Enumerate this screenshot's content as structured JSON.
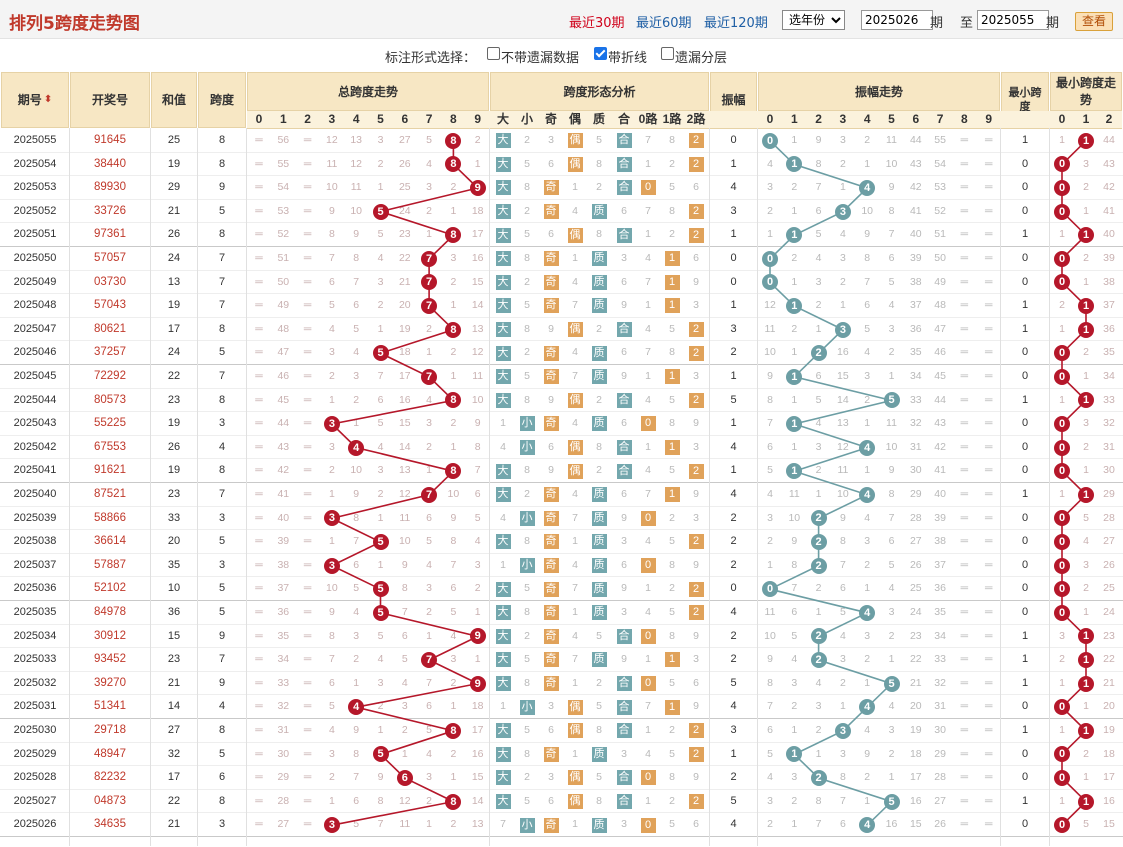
{
  "title": "排列5跨度走势图",
  "periods": [
    "最近30期",
    "最近60期",
    "最近120期"
  ],
  "year_select": "选年份",
  "from_issue": "2025026",
  "to_issue": "2025055",
  "label_qi": "期",
  "label_zhi": "至",
  "query_label": "查看",
  "options": {
    "label": "标注形式选择：",
    "items": [
      {
        "label": "不带遗漏数据",
        "checked": false
      },
      {
        "label": "带折线",
        "checked": true
      },
      {
        "label": "遗漏分层",
        "checked": false
      }
    ]
  },
  "headers": {
    "issue": "期号",
    "draw": "开奖号",
    "sum": "和值",
    "span": "跨度",
    "span_trend": "总跨度走势",
    "pattern": "跨度形态分析",
    "amp": "振幅",
    "amp_trend": "振幅走势",
    "min_span": "最小跨度",
    "min_trend": "最小跨度走势",
    "pattern_cols": [
      "大",
      "小",
      "奇",
      "偶",
      "质",
      "合",
      "0路",
      "1路",
      "2路"
    ],
    "digits": [
      "0",
      "1",
      "2",
      "3",
      "4",
      "5",
      "6",
      "7",
      "8",
      "9"
    ],
    "min_digits": [
      "0",
      "1",
      "2"
    ]
  },
  "colors": {
    "red": "#b5172a",
    "teal": "#6c9ea4",
    "orange": "#e0a25a"
  },
  "rows": [
    {
      "issue": "2025055",
      "draw": "91645",
      "sum": 25,
      "span": 8,
      "span_miss": [
        56,
        56,
        56,
        12,
        13,
        3,
        27,
        5,
        null,
        2
      ],
      "amp": 0,
      "amp_miss": [
        null,
        1,
        9,
        3,
        2,
        11,
        44,
        55,
        56,
        56
      ],
      "min": 1,
      "min_miss": [
        1,
        null,
        44
      ]
    },
    {
      "issue": "2025054",
      "draw": "38440",
      "sum": 19,
      "span": 8,
      "span_miss": [
        55,
        55,
        55,
        11,
        12,
        2,
        26,
        4,
        null,
        1
      ],
      "amp": 1,
      "amp_miss": [
        4,
        null,
        8,
        2,
        1,
        10,
        43,
        54,
        55,
        55
      ],
      "min": 0,
      "min_miss": [
        null,
        3,
        43
      ]
    },
    {
      "issue": "2025053",
      "draw": "89930",
      "sum": 29,
      "span": 9,
      "span_miss": [
        54,
        54,
        54,
        10,
        11,
        1,
        25,
        3,
        2,
        null
      ],
      "amp": 4,
      "amp_miss": [
        3,
        2,
        7,
        1,
        null,
        9,
        42,
        53,
        54,
        54
      ],
      "min": 0,
      "min_miss": [
        null,
        2,
        42
      ]
    },
    {
      "issue": "2025052",
      "draw": "33726",
      "sum": 21,
      "span": 5,
      "span_miss": [
        53,
        53,
        53,
        9,
        10,
        null,
        24,
        2,
        1,
        18
      ],
      "amp": 3,
      "amp_miss": [
        2,
        1,
        6,
        null,
        10,
        8,
        41,
        52,
        53,
        53
      ],
      "min": 0,
      "min_miss": [
        null,
        1,
        41
      ]
    },
    {
      "issue": "2025051",
      "draw": "97361",
      "sum": 26,
      "span": 8,
      "span_miss": [
        52,
        52,
        52,
        8,
        9,
        5,
        23,
        1,
        null,
        17
      ],
      "amp": 1,
      "amp_miss": [
        1,
        null,
        5,
        4,
        9,
        7,
        40,
        51,
        52,
        52
      ],
      "min": 1,
      "min_miss": [
        1,
        null,
        40
      ]
    },
    {
      "issue": "2025050",
      "draw": "57057",
      "sum": 24,
      "span": 7,
      "span_miss": [
        51,
        51,
        51,
        7,
        8,
        4,
        22,
        null,
        3,
        16
      ],
      "amp": 0,
      "amp_miss": [
        null,
        2,
        4,
        3,
        8,
        6,
        39,
        50,
        51,
        51
      ],
      "min": 0,
      "min_miss": [
        null,
        2,
        39
      ]
    },
    {
      "issue": "2025049",
      "draw": "03730",
      "sum": 13,
      "span": 7,
      "span_miss": [
        50,
        50,
        50,
        6,
        7,
        3,
        21,
        null,
        2,
        15
      ],
      "amp": 0,
      "amp_miss": [
        null,
        1,
        3,
        2,
        7,
        5,
        38,
        49,
        50,
        50
      ],
      "min": 0,
      "min_miss": [
        null,
        1,
        38
      ]
    },
    {
      "issue": "2025048",
      "draw": "57043",
      "sum": 19,
      "span": 7,
      "span_miss": [
        49,
        49,
        49,
        5,
        6,
        2,
        20,
        null,
        1,
        14
      ],
      "amp": 1,
      "amp_miss": [
        12,
        null,
        2,
        1,
        6,
        4,
        37,
        48,
        49,
        49
      ],
      "min": 1,
      "min_miss": [
        2,
        null,
        37
      ]
    },
    {
      "issue": "2025047",
      "draw": "80621",
      "sum": 17,
      "span": 8,
      "span_miss": [
        48,
        48,
        48,
        4,
        5,
        1,
        19,
        2,
        null,
        13
      ],
      "amp": 3,
      "amp_miss": [
        11,
        2,
        1,
        null,
        5,
        3,
        36,
        47,
        48,
        48
      ],
      "min": 1,
      "min_miss": [
        1,
        null,
        36
      ]
    },
    {
      "issue": "2025046",
      "draw": "37257",
      "sum": 24,
      "span": 5,
      "span_miss": [
        47,
        47,
        47,
        3,
        4,
        null,
        18,
        1,
        2,
        12
      ],
      "amp": 2,
      "amp_miss": [
        10,
        1,
        null,
        16,
        4,
        2,
        35,
        46,
        47,
        47
      ],
      "min": 0,
      "min_miss": [
        null,
        2,
        35
      ]
    },
    {
      "issue": "2025045",
      "draw": "72292",
      "sum": 22,
      "span": 7,
      "span_miss": [
        46,
        46,
        46,
        2,
        3,
        7,
        17,
        null,
        1,
        11
      ],
      "amp": 1,
      "amp_miss": [
        9,
        null,
        6,
        15,
        3,
        1,
        34,
        45,
        46,
        46
      ],
      "min": 0,
      "min_miss": [
        null,
        1,
        34
      ]
    },
    {
      "issue": "2025044",
      "draw": "80573",
      "sum": 23,
      "span": 8,
      "span_miss": [
        45,
        45,
        45,
        1,
        2,
        6,
        16,
        4,
        null,
        10
      ],
      "amp": 5,
      "amp_miss": [
        8,
        1,
        5,
        14,
        2,
        null,
        33,
        44,
        45,
        45
      ],
      "min": 1,
      "min_miss": [
        1,
        null,
        33
      ]
    },
    {
      "issue": "2025043",
      "draw": "55225",
      "sum": 19,
      "span": 3,
      "span_miss": [
        44,
        44,
        44,
        null,
        1,
        5,
        15,
        3,
        2,
        9
      ],
      "amp": 1,
      "amp_miss": [
        7,
        null,
        4,
        13,
        1,
        11,
        32,
        43,
        44,
        44
      ],
      "min": 0,
      "min_miss": [
        null,
        3,
        32
      ]
    },
    {
      "issue": "2025042",
      "draw": "67553",
      "sum": 26,
      "span": 4,
      "span_miss": [
        43,
        43,
        43,
        3,
        null,
        4,
        14,
        2,
        1,
        8
      ],
      "amp": 4,
      "amp_miss": [
        6,
        1,
        3,
        12,
        null,
        10,
        31,
        42,
        43,
        43
      ],
      "min": 0,
      "min_miss": [
        null,
        2,
        31
      ]
    },
    {
      "issue": "2025041",
      "draw": "91621",
      "sum": 19,
      "span": 8,
      "span_miss": [
        42,
        42,
        42,
        2,
        10,
        3,
        13,
        1,
        null,
        7
      ],
      "amp": 1,
      "amp_miss": [
        5,
        null,
        2,
        11,
        1,
        9,
        30,
        41,
        42,
        42
      ],
      "min": 0,
      "min_miss": [
        null,
        1,
        30
      ]
    },
    {
      "issue": "2025040",
      "draw": "87521",
      "sum": 23,
      "span": 7,
      "span_miss": [
        41,
        41,
        41,
        1,
        9,
        2,
        12,
        null,
        10,
        6
      ],
      "amp": 4,
      "amp_miss": [
        4,
        11,
        1,
        10,
        null,
        8,
        29,
        40,
        41,
        41
      ],
      "min": 1,
      "min_miss": [
        1,
        null,
        29
      ]
    },
    {
      "issue": "2025039",
      "draw": "58866",
      "sum": 33,
      "span": 3,
      "span_miss": [
        40,
        40,
        40,
        null,
        8,
        1,
        11,
        6,
        9,
        5
      ],
      "amp": 2,
      "amp_miss": [
        3,
        10,
        null,
        9,
        4,
        7,
        28,
        39,
        40,
        40
      ],
      "min": 0,
      "min_miss": [
        null,
        5,
        28
      ]
    },
    {
      "issue": "2025038",
      "draw": "36614",
      "sum": 20,
      "span": 5,
      "span_miss": [
        39,
        39,
        39,
        1,
        7,
        null,
        10,
        5,
        8,
        4
      ],
      "amp": 2,
      "amp_miss": [
        2,
        9,
        null,
        8,
        3,
        6,
        27,
        38,
        39,
        39
      ],
      "min": 0,
      "min_miss": [
        null,
        4,
        27
      ]
    },
    {
      "issue": "2025037",
      "draw": "57887",
      "sum": 35,
      "span": 3,
      "span_miss": [
        38,
        38,
        38,
        null,
        6,
        1,
        9,
        4,
        7,
        3
      ],
      "amp": 2,
      "amp_miss": [
        1,
        8,
        null,
        7,
        2,
        5,
        26,
        37,
        38,
        38
      ],
      "min": 0,
      "min_miss": [
        null,
        3,
        26
      ]
    },
    {
      "issue": "2025036",
      "draw": "52102",
      "sum": 10,
      "span": 5,
      "span_miss": [
        37,
        37,
        37,
        10,
        5,
        null,
        8,
        3,
        6,
        2
      ],
      "amp": 0,
      "amp_miss": [
        null,
        7,
        2,
        6,
        1,
        4,
        25,
        36,
        37,
        37
      ],
      "min": 0,
      "min_miss": [
        null,
        2,
        25
      ]
    },
    {
      "issue": "2025035",
      "draw": "84978",
      "sum": 36,
      "span": 5,
      "span_miss": [
        36,
        36,
        36,
        9,
        4,
        null,
        7,
        2,
        5,
        1
      ],
      "amp": 4,
      "amp_miss": [
        11,
        6,
        1,
        5,
        null,
        3,
        24,
        35,
        36,
        36
      ],
      "min": 0,
      "min_miss": [
        null,
        1,
        24
      ]
    },
    {
      "issue": "2025034",
      "draw": "30912",
      "sum": 15,
      "span": 9,
      "span_miss": [
        35,
        35,
        35,
        8,
        3,
        5,
        6,
        1,
        4,
        null
      ],
      "amp": 2,
      "amp_miss": [
        10,
        5,
        null,
        4,
        3,
        2,
        23,
        34,
        35,
        35
      ],
      "min": 1,
      "min_miss": [
        3,
        null,
        23
      ]
    },
    {
      "issue": "2025033",
      "draw": "93452",
      "sum": 23,
      "span": 7,
      "span_miss": [
        34,
        34,
        34,
        7,
        2,
        4,
        5,
        null,
        3,
        1
      ],
      "amp": 2,
      "amp_miss": [
        9,
        4,
        null,
        3,
        2,
        1,
        22,
        33,
        34,
        34
      ],
      "min": 1,
      "min_miss": [
        2,
        null,
        22
      ]
    },
    {
      "issue": "2025032",
      "draw": "39270",
      "sum": 21,
      "span": 9,
      "span_miss": [
        33,
        33,
        33,
        6,
        1,
        3,
        4,
        7,
        2,
        null
      ],
      "amp": 5,
      "amp_miss": [
        8,
        3,
        4,
        2,
        1,
        null,
        21,
        32,
        33,
        33
      ],
      "min": 1,
      "min_miss": [
        1,
        null,
        21
      ]
    },
    {
      "issue": "2025031",
      "draw": "51341",
      "sum": 14,
      "span": 4,
      "span_miss": [
        32,
        32,
        32,
        5,
        null,
        2,
        3,
        6,
        1,
        18
      ],
      "amp": 4,
      "amp_miss": [
        7,
        2,
        3,
        1,
        null,
        4,
        20,
        31,
        32,
        32
      ],
      "min": 0,
      "min_miss": [
        null,
        1,
        20
      ]
    },
    {
      "issue": "2025030",
      "draw": "29718",
      "sum": 27,
      "span": 8,
      "span_miss": [
        31,
        31,
        31,
        4,
        9,
        1,
        2,
        5,
        null,
        17
      ],
      "amp": 3,
      "amp_miss": [
        6,
        1,
        2,
        null,
        4,
        3,
        19,
        30,
        31,
        31
      ],
      "min": 1,
      "min_miss": [
        1,
        null,
        19
      ]
    },
    {
      "issue": "2025029",
      "draw": "48947",
      "sum": 32,
      "span": 5,
      "span_miss": [
        30,
        30,
        30,
        3,
        8,
        null,
        1,
        4,
        2,
        16
      ],
      "amp": 1,
      "amp_miss": [
        5,
        null,
        1,
        3,
        9,
        2,
        18,
        29,
        30,
        30
      ],
      "min": 0,
      "min_miss": [
        null,
        2,
        18
      ]
    },
    {
      "issue": "2025028",
      "draw": "82232",
      "sum": 17,
      "span": 6,
      "span_miss": [
        29,
        29,
        29,
        2,
        7,
        9,
        null,
        3,
        1,
        15
      ],
      "amp": 2,
      "amp_miss": [
        4,
        3,
        null,
        8,
        2,
        1,
        17,
        28,
        29,
        29
      ],
      "min": 0,
      "min_miss": [
        null,
        1,
        17
      ]
    },
    {
      "issue": "2025027",
      "draw": "04873",
      "sum": 22,
      "span": 8,
      "span_miss": [
        28,
        28,
        28,
        1,
        6,
        8,
        12,
        2,
        null,
        14
      ],
      "amp": 5,
      "amp_miss": [
        3,
        2,
        8,
        7,
        1,
        null,
        16,
        27,
        28,
        28
      ],
      "min": 1,
      "min_miss": [
        1,
        null,
        16
      ]
    },
    {
      "issue": "2025026",
      "draw": "34635",
      "sum": 21,
      "span": 3,
      "span_miss": [
        27,
        27,
        27,
        null,
        5,
        7,
        11,
        1,
        2,
        13
      ],
      "amp": 4,
      "amp_miss": [
        2,
        1,
        7,
        6,
        null,
        16,
        15,
        26,
        27,
        27
      ],
      "min": 0,
      "min_miss": [
        null,
        5,
        15
      ]
    }
  ]
}
